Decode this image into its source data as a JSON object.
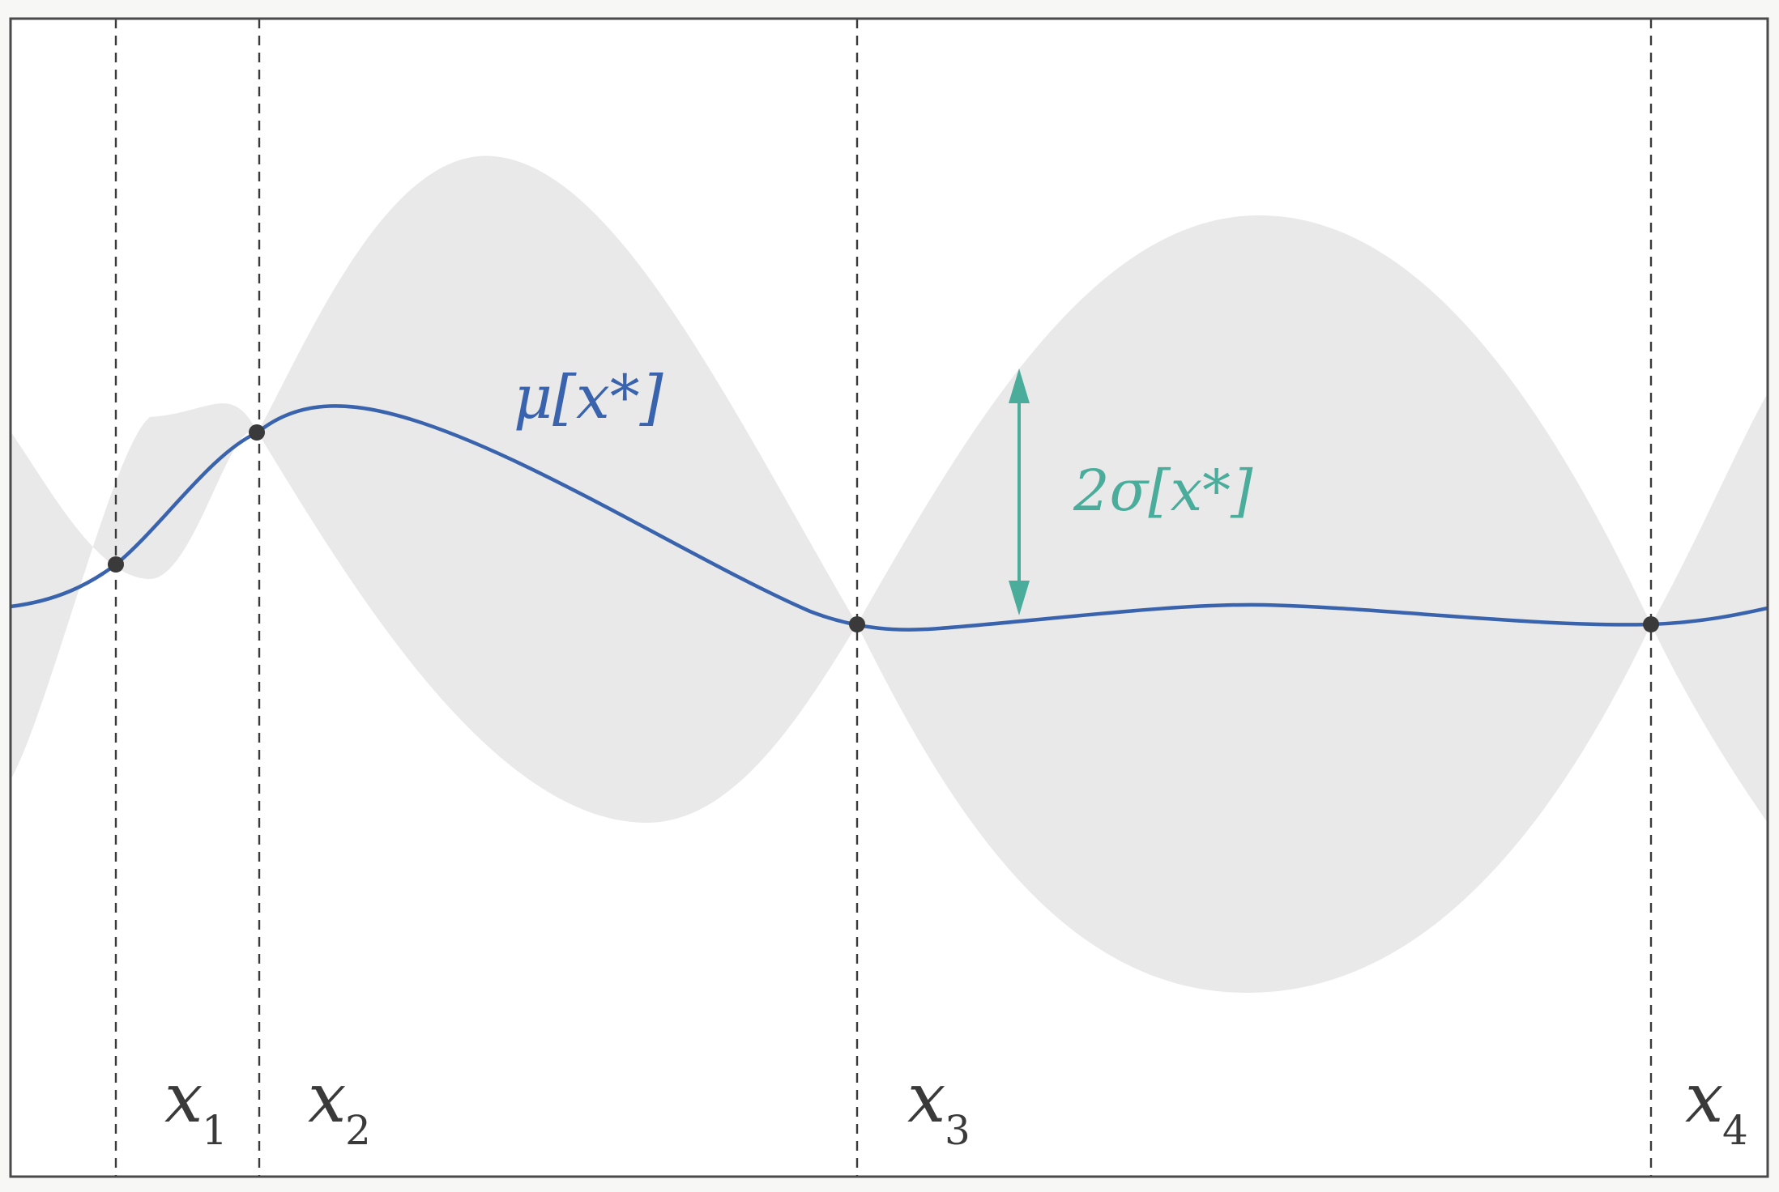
{
  "diagram": {
    "mean_label": "μ[x*]",
    "std_label": "2σ[x*]",
    "observations": [
      {
        "name": "x",
        "subscript": "1"
      },
      {
        "name": "x",
        "subscript": "2"
      },
      {
        "name": "x",
        "subscript": "3"
      },
      {
        "name": "x",
        "subscript": "4"
      }
    ],
    "colors": {
      "mean_line": "#3a63ad",
      "uncertainty_band": "#e9e9ea",
      "std_arrow": "#4aac9a",
      "guide_lines": "#3a3a3a",
      "points": "#3a3a3a",
      "frame": "#4a4a4a",
      "background": "#ffffff"
    }
  }
}
